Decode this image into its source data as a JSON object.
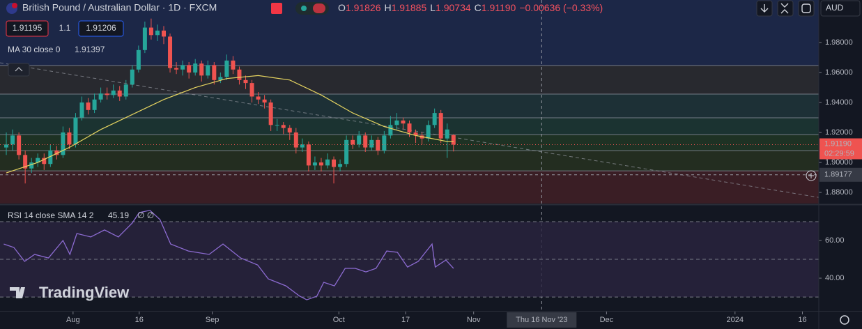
{
  "header": {
    "symbol": "British Pound / Australian Dollar · 1D · FXCM",
    "open_label": "O",
    "open": "1.91826",
    "high_label": "H",
    "high": "1.91885",
    "low_label": "L",
    "low": "1.90734",
    "close_label": "C",
    "close": "1.91190",
    "change": "−0.00636 (−0.33%)",
    "currency": "AUD"
  },
  "trade": {
    "sell": "1.91195",
    "spread": "1.1",
    "buy": "1.91206"
  },
  "indicator_ma": {
    "label": "MA 30 close 0",
    "value": "1.91397"
  },
  "indicator_rsi": {
    "label": "RSI 14 close SMA 14 2",
    "value": "45.19",
    "extra": "∅ ∅"
  },
  "watermark": "TradingView",
  "chart_data": [
    {
      "type": "candlestick",
      "up_color": "#26a69a",
      "down_color": "#ef5350",
      "ohlc": [
        [
          1.91,
          1.92,
          1.905,
          1.912
        ],
        [
          1.912,
          1.922,
          1.908,
          1.918
        ],
        [
          1.918,
          1.92,
          1.902,
          1.905
        ],
        [
          1.905,
          1.908,
          1.886,
          1.896
        ],
        [
          1.896,
          1.903,
          1.893,
          1.9
        ],
        [
          1.9,
          1.906,
          1.897,
          1.903
        ],
        [
          1.903,
          1.906,
          1.895,
          1.899
        ],
        [
          1.899,
          1.912,
          1.897,
          1.908
        ],
        [
          1.908,
          1.911,
          1.902,
          1.905
        ],
        [
          1.905,
          1.924,
          1.903,
          1.92
        ],
        [
          1.92,
          1.923,
          1.909,
          1.912
        ],
        [
          1.912,
          1.933,
          1.91,
          1.93
        ],
        [
          1.93,
          1.944,
          1.928,
          1.94
        ],
        [
          1.94,
          1.943,
          1.932,
          1.935
        ],
        [
          1.935,
          1.946,
          1.933,
          1.942
        ],
        [
          1.942,
          1.95,
          1.94,
          1.946
        ],
        [
          1.946,
          1.95,
          1.942,
          1.945
        ],
        [
          1.945,
          1.952,
          1.943,
          1.948
        ],
        [
          1.948,
          1.951,
          1.941,
          1.944
        ],
        [
          1.944,
          1.955,
          1.942,
          1.952
        ],
        [
          1.952,
          1.965,
          1.95,
          1.962
        ],
        [
          1.962,
          1.978,
          1.96,
          1.975
        ],
        [
          1.975,
          1.994,
          1.973,
          1.99
        ],
        [
          1.99,
          1.996,
          1.982,
          1.985
        ],
        [
          1.985,
          1.992,
          1.981,
          1.988
        ],
        [
          1.988,
          1.991,
          1.979,
          1.984
        ],
        [
          1.984,
          1.986,
          1.96,
          1.963
        ],
        [
          1.963,
          1.967,
          1.959,
          1.962
        ],
        [
          1.962,
          1.968,
          1.958,
          1.965
        ],
        [
          1.965,
          1.967,
          1.956,
          1.96
        ],
        [
          1.96,
          1.969,
          1.958,
          1.966
        ],
        [
          1.966,
          1.968,
          1.954,
          1.958
        ],
        [
          1.958,
          1.968,
          1.956,
          1.965
        ],
        [
          1.965,
          1.967,
          1.952,
          1.955
        ],
        [
          1.955,
          1.96,
          1.953,
          1.957
        ],
        [
          1.957,
          1.972,
          1.955,
          1.968
        ],
        [
          1.968,
          1.971,
          1.959,
          1.962
        ],
        [
          1.962,
          1.964,
          1.952,
          1.955
        ],
        [
          1.955,
          1.958,
          1.949,
          1.953
        ],
        [
          1.953,
          1.955,
          1.94,
          1.944
        ],
        [
          1.944,
          1.947,
          1.939,
          1.942
        ],
        [
          1.942,
          1.945,
          1.936,
          1.94
        ],
        [
          1.94,
          1.942,
          1.921,
          1.925
        ],
        [
          1.925,
          1.929,
          1.921,
          1.925
        ],
        [
          1.925,
          1.927,
          1.919,
          1.923
        ],
        [
          1.923,
          1.925,
          1.915,
          1.92
        ],
        [
          1.92,
          1.923,
          1.906,
          1.91
        ],
        [
          1.91,
          1.916,
          1.907,
          1.912
        ],
        [
          1.912,
          1.914,
          1.894,
          1.898
        ],
        [
          1.898,
          1.904,
          1.895,
          1.9
        ],
        [
          1.9,
          1.903,
          1.894,
          1.898
        ],
        [
          1.898,
          1.906,
          1.896,
          1.902
        ],
        [
          1.902,
          1.904,
          1.886,
          1.897
        ],
        [
          1.897,
          1.902,
          1.894,
          1.899
        ],
        [
          1.899,
          1.918,
          1.897,
          1.915
        ],
        [
          1.915,
          1.918,
          1.909,
          1.912
        ],
        [
          1.912,
          1.921,
          1.91,
          1.918
        ],
        [
          1.918,
          1.92,
          1.907,
          1.91
        ],
        [
          1.91,
          1.918,
          1.908,
          1.915
        ],
        [
          1.915,
          1.917,
          1.905,
          1.908
        ],
        [
          1.908,
          1.921,
          1.906,
          1.918
        ],
        [
          1.918,
          1.931,
          1.916,
          1.925
        ],
        [
          1.925,
          1.933,
          1.922,
          1.928
        ],
        [
          1.928,
          1.93,
          1.922,
          1.926
        ],
        [
          1.926,
          1.928,
          1.917,
          1.92
        ],
        [
          1.92,
          1.922,
          1.913,
          1.918
        ],
        [
          1.918,
          1.92,
          1.912,
          1.916
        ],
        [
          1.916,
          1.928,
          1.914,
          1.925
        ],
        [
          1.925,
          1.936,
          1.923,
          1.933
        ],
        [
          1.933,
          1.935,
          1.913,
          1.916
        ],
        [
          1.916,
          1.926,
          1.903,
          1.922
        ],
        [
          1.91826,
          1.91885,
          1.90734,
          1.9119
        ]
      ],
      "ma": {
        "color": "#e6d460",
        "x": [
          0,
          5,
          10,
          15,
          20,
          25,
          30,
          35,
          40,
          45,
          50,
          55,
          60,
          65,
          70,
          71
        ],
        "values": [
          1.893,
          1.9,
          1.91,
          1.922,
          1.932,
          1.942,
          1.95,
          1.956,
          1.958,
          1.955,
          1.945,
          1.933,
          1.924,
          1.918,
          1.914,
          1.91397
        ]
      },
      "levels": [
        1.9647,
        1.9456,
        1.9298,
        1.9186,
        1.9079,
        1.8944
      ],
      "level_color": "#8a8f9c",
      "zone_colors": [
        "#1c2747",
        "#28292f",
        "#1d3036",
        "#1b3331",
        "#1e3224",
        "#232d20",
        "#3a1e25"
      ],
      "trend_line": {
        "x": [
          -1,
          129
        ],
        "values": [
          1.9665,
          1.8767
        ]
      },
      "last_price": {
        "value": 1.9119,
        "label": "1.91190",
        "countdown": "02:29:59"
      },
      "crosshair": {
        "x": 85,
        "label": "Thu 16 Nov '23",
        "value": 1.89177,
        "price_label": "1.89177"
      },
      "xlim": [
        -1,
        129
      ],
      "xticks": [
        {
          "value": 10.6,
          "label": "Aug"
        },
        {
          "value": 21.1,
          "label": "16"
        },
        {
          "value": 32.7,
          "label": "Sep"
        },
        {
          "value": 52.8,
          "label": "Oct"
        },
        {
          "value": 63.4,
          "label": "17"
        },
        {
          "value": 74.2,
          "label": "Nov"
        },
        {
          "value": 95.3,
          "label": "Dec"
        },
        {
          "value": 115.7,
          "label": "2024"
        },
        {
          "value": 126.4,
          "label": "16"
        }
      ],
      "ylim": [
        1.8726,
        2.0084
      ],
      "yticks": [
        {
          "value": 1.98,
          "label": "1.98000"
        },
        {
          "value": 1.96,
          "label": "1.96000"
        },
        {
          "value": 1.94,
          "label": "1.94000"
        },
        {
          "value": 1.92,
          "label": "1.92000"
        },
        {
          "value": 1.9,
          "label": "1.90000"
        },
        {
          "value": 1.88,
          "label": "1.88000"
        }
      ]
    },
    {
      "type": "line",
      "color": "#8c6bd1",
      "x": [
        -0.4,
        1.2,
        2.9,
        4.5,
        6.7,
        9,
        10.1,
        11.2,
        13.4,
        15.6,
        17.8,
        20,
        21.1,
        22.8,
        24.4,
        26.1,
        28.9,
        32.2,
        34.4,
        37.2,
        39.9,
        41.6,
        44.4,
        46.6,
        47.7,
        49.3,
        50.4,
        52.1,
        53.8,
        55.4,
        57.1,
        58.7,
        60.4,
        62.1,
        63.7,
        65.4,
        67.6,
        68.1,
        69.8,
        71
      ],
      "values": [
        58.1,
        56.3,
        48.9,
        52.6,
        50.7,
        60,
        52.6,
        63.7,
        61.9,
        65.6,
        61.9,
        69.3,
        74.8,
        76,
        71.1,
        58.1,
        54.4,
        52.6,
        58.1,
        50.7,
        47,
        39.6,
        35.9,
        30.4,
        28.5,
        30.4,
        37.8,
        35.9,
        45.2,
        45.2,
        43.3,
        45.2,
        54.4,
        53.7,
        45.9,
        48.9,
        58.1,
        45.9,
        49.6,
        45.19
      ],
      "bands": [
        70,
        50,
        30
      ],
      "band_fill": "#2a2440",
      "xlim": [
        -1,
        129
      ],
      "ylim": [
        23,
        78.5
      ],
      "yticks": [
        {
          "value": 60,
          "label": "60.00"
        },
        {
          "value": 40,
          "label": "40.00"
        }
      ]
    }
  ]
}
